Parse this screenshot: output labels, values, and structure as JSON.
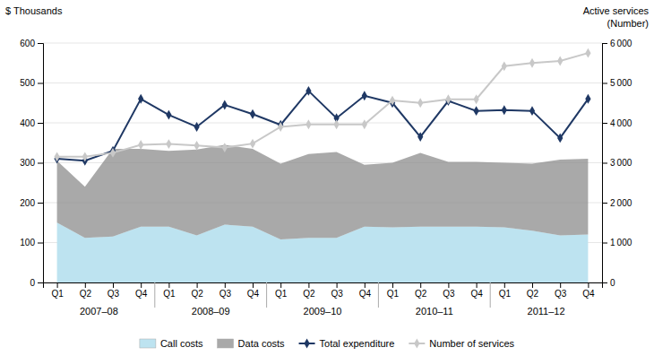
{
  "chart_data": {
    "type": "line",
    "categories": [
      "Q1",
      "Q2",
      "Q3",
      "Q4",
      "Q1",
      "Q2",
      "Q3",
      "Q4",
      "Q1",
      "Q2",
      "Q3",
      "Q4",
      "Q1",
      "Q2",
      "Q3",
      "Q4",
      "Q1",
      "Q2",
      "Q3",
      "Q4"
    ],
    "annotations": [
      "2007–08",
      "2008–09",
      "2009–10",
      "2010–11",
      "2011–12"
    ],
    "ylabel": "$ Thousands",
    "y2label": [
      "Active services",
      "(Number)"
    ],
    "stacked": true,
    "grid": true,
    "legend": "bottom",
    "ylim": [
      0,
      600
    ],
    "yticks": [
      0,
      100,
      200,
      300,
      400,
      500,
      600
    ],
    "y2lim": [
      0,
      6000
    ],
    "y2ticks": [
      0,
      {
        "value": 1000,
        "label": "1 000"
      },
      {
        "value": 2000,
        "label": "2 000"
      },
      {
        "value": 3000,
        "label": "3 000"
      },
      {
        "value": 4000,
        "label": "4 000"
      },
      {
        "value": 5000,
        "label": "5 000"
      },
      {
        "value": 6000,
        "label": "6 000"
      }
    ],
    "series": [
      {
        "name": "Call costs",
        "type": "area",
        "color": "#bde3f0",
        "values": [
          150,
          112,
          115,
          140,
          140,
          118,
          145,
          140,
          108,
          112,
          112,
          140,
          138,
          140,
          140,
          140,
          138,
          130,
          118,
          120
        ]
      },
      {
        "name": "Data costs",
        "type": "area",
        "color": "#8c8c8c",
        "values": [
          155,
          128,
          220,
          195,
          190,
          215,
          200,
          195,
          190,
          210,
          215,
          155,
          162,
          185,
          162,
          162,
          162,
          168,
          190,
          190
        ]
      },
      {
        "name": "Total expenditure",
        "type": "line",
        "marker": "diamond",
        "color": "#1f3864",
        "values": [
          310,
          305,
          330,
          460,
          420,
          390,
          445,
          422,
          395,
          480,
          412,
          468,
          450,
          365,
          455,
          430,
          432,
          430,
          362,
          460
        ]
      },
      {
        "name": "Number of services",
        "type": "line",
        "marker": "diamond",
        "color": "#c8c8c8",
        "axis": "y2",
        "values": [
          3150,
          3150,
          3250,
          3450,
          3470,
          3430,
          3380,
          3480,
          3900,
          3960,
          3960,
          3960,
          4560,
          4500,
          4590,
          4590,
          5420,
          5500,
          5550,
          5750
        ]
      }
    ]
  }
}
